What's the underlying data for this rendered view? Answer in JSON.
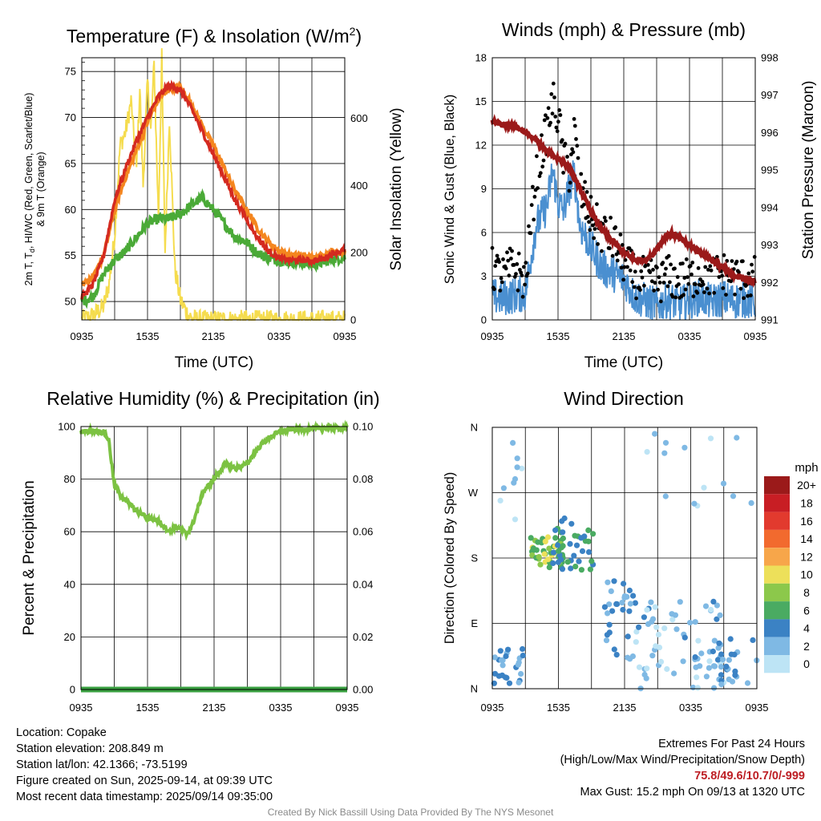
{
  "chart_data": [
    {
      "type": "line",
      "title": "Temperature (F) & Insolation (W/m²)",
      "xlabel": "Time (UTC)",
      "ylabel": "2m T, Td, HI/WC (Red, Green, Scarlet/Blue) & 9m T (Orange)",
      "ylabel2": "Solar Insolation (Yellow)",
      "x_ticks": [
        "0935",
        "1535",
        "2135",
        "0335",
        "0935"
      ],
      "ylim": [
        48,
        76.5
      ],
      "y_ticks": [
        "50",
        "55",
        "60",
        "65",
        "70",
        "75"
      ],
      "ylim2": [
        0,
        780
      ],
      "y2_ticks": [
        "0",
        "200",
        "400",
        "600"
      ],
      "colors": {
        "temp": "#d42a20",
        "temp9m": "#f4861f",
        "dewpoint": "#4aaa37",
        "insolation": "#f5dc4e"
      },
      "series": [
        {
          "name": "2m T",
          "hours": [
            0,
            1,
            2,
            3,
            4,
            5,
            6,
            7,
            8,
            9,
            10,
            11,
            12,
            13,
            14,
            15,
            16,
            17,
            18,
            19,
            20,
            21,
            22,
            23,
            24
          ],
          "values": [
            50.5,
            51.8,
            55,
            61,
            64.5,
            67.5,
            70,
            72.3,
            73.5,
            73,
            71,
            68.5,
            66,
            63.5,
            61,
            59,
            57,
            55.5,
            54.7,
            54.5,
            54.5,
            54.4,
            54.6,
            55.3,
            55.6
          ]
        },
        {
          "name": "9m T",
          "hours": [
            0,
            1,
            2,
            3,
            4,
            5,
            6,
            7,
            8,
            9,
            10,
            11,
            12,
            13,
            14,
            15,
            16,
            17,
            18,
            19,
            20,
            21,
            22,
            23,
            24
          ],
          "values": [
            52,
            52.5,
            55,
            60,
            63.5,
            66.5,
            69.5,
            72,
            73.2,
            73.3,
            71.5,
            69,
            67,
            64.5,
            62,
            60,
            58,
            56.5,
            55.5,
            55,
            55,
            54.8,
            55,
            55.5,
            55.3
          ]
        },
        {
          "name": "2m Td",
          "hours": [
            0,
            1,
            2,
            3,
            4,
            5,
            6,
            7,
            8,
            9,
            10,
            11,
            12,
            13,
            14,
            15,
            16,
            17,
            18,
            19,
            20,
            21,
            22,
            23,
            24
          ],
          "values": [
            50,
            50.5,
            53,
            54.5,
            55.5,
            57,
            58.5,
            59,
            59,
            59.5,
            60.5,
            61.3,
            60,
            58.5,
            57,
            56.5,
            55.3,
            54.7,
            54.5,
            54.3,
            54.2,
            54,
            54.3,
            54.6,
            54.8
          ]
        },
        {
          "name": "Insolation",
          "hours": [
            0,
            1,
            2,
            2.5,
            3,
            3.5,
            4,
            4.5,
            5,
            5.3,
            5.6,
            6,
            6.3,
            6.6,
            7,
            7.3,
            7.6,
            8,
            8.5,
            9,
            9.5,
            10,
            10.5,
            11,
            24
          ],
          "values": [
            0,
            12,
            40,
            110,
            250,
            520,
            560,
            650,
            450,
            690,
            400,
            710,
            560,
            760,
            300,
            780,
            200,
            600,
            150,
            60,
            25,
            5,
            0,
            0,
            0
          ]
        }
      ]
    },
    {
      "type": "line",
      "title": "Winds (mph) & Pressure (mb)",
      "xlabel": "Time (UTC)",
      "ylabel": "Sonic Wind & Gust (Blue, Black)",
      "ylabel2": "Station Pressure (Maroon)",
      "x_ticks": [
        "0935",
        "1535",
        "2135",
        "0335",
        "0935"
      ],
      "ylim": [
        0,
        18
      ],
      "y_ticks": [
        "0",
        "3",
        "6",
        "9",
        "12",
        "15",
        "18"
      ],
      "ylim2": [
        991,
        998
      ],
      "y2_ticks": [
        "991",
        "992",
        "993",
        "994",
        "995",
        "996",
        "997",
        "998"
      ],
      "colors": {
        "wind": "#4a8fd0",
        "gust": "#000000",
        "pressure": "#9b1a1a"
      },
      "series": [
        {
          "name": "Sonic Wind",
          "hours": [
            0,
            1,
            2,
            3,
            4,
            5,
            5.5,
            6,
            6.5,
            7,
            7.5,
            8,
            9,
            10,
            11,
            12,
            13,
            14,
            15,
            16,
            17,
            18,
            19,
            20,
            21,
            22,
            23,
            24
          ],
          "values": [
            1.6,
            1.5,
            1.7,
            1.8,
            6.5,
            7.8,
            10.3,
            8,
            7.5,
            9,
            10,
            6.5,
            5,
            3.6,
            3.2,
            2.8,
            1.6,
            1.3,
            1,
            1.4,
            1.1,
            1.3,
            1.6,
            1.2,
            1.5,
            1.3,
            1.4,
            1.2
          ]
        },
        {
          "name": "Gust",
          "hours": [
            0,
            1,
            2,
            3,
            4,
            5,
            5.5,
            6,
            6.5,
            7,
            7.5,
            8,
            9,
            10,
            11,
            12,
            13,
            14,
            15,
            16,
            17,
            18,
            19,
            20,
            21,
            22,
            23,
            24
          ],
          "values": [
            3.5,
            3,
            3.8,
            2.6,
            10,
            13,
            15,
            14,
            11,
            10,
            13,
            9,
            7,
            6,
            5.5,
            4,
            3,
            2.8,
            2.5,
            3,
            2.6,
            2.8,
            3.2,
            3,
            3.2,
            3,
            2.8,
            2.9
          ]
        },
        {
          "name": "Pressure",
          "hours": [
            0,
            1,
            2,
            3,
            4,
            5,
            6,
            7,
            8,
            9,
            10,
            11,
            12,
            13,
            14,
            14.5,
            15,
            15.5,
            16,
            16.5,
            17,
            18,
            19,
            20,
            21,
            22,
            23,
            24
          ],
          "values": [
            996.3,
            996.2,
            996.2,
            996.0,
            995.8,
            995.5,
            995.3,
            995.1,
            994.5,
            993.9,
            993.4,
            993.1,
            992.8,
            992.6,
            992.6,
            992.7,
            992.9,
            993.1,
            993.3,
            993.3,
            993.2,
            993.0,
            992.8,
            992.6,
            992.4,
            992.2,
            992.1,
            992.0
          ]
        }
      ]
    },
    {
      "type": "line",
      "title": "Relative Humidity (%) & Precipitation (in)",
      "xlabel": "",
      "ylabel": "Percent & Precipitation",
      "x_ticks": [
        "0935",
        "1535",
        "2135",
        "0335",
        "0935"
      ],
      "ylim": [
        0,
        100
      ],
      "y_ticks": [
        "0",
        "20",
        "40",
        "60",
        "80",
        "100"
      ],
      "ylim2": [
        0,
        0.1
      ],
      "y2_ticks": [
        "0.00",
        "0.02",
        "0.04",
        "0.06",
        "0.08",
        "0.10"
      ],
      "colors": {
        "rh": "#7cc242",
        "precip": "#3aa040"
      },
      "series": [
        {
          "name": "RH",
          "hours": [
            0,
            1,
            2,
            2.5,
            3,
            3.5,
            4,
            5,
            6,
            7,
            8,
            8.5,
            9,
            9.5,
            10,
            11,
            12,
            13,
            14,
            15,
            16,
            17,
            18,
            19,
            20,
            21,
            22,
            23,
            24
          ],
          "values": [
            98,
            98.5,
            98,
            95,
            78,
            74,
            72,
            68,
            65.5,
            64,
            60,
            62,
            61,
            59,
            62,
            75,
            80,
            86,
            84,
            86,
            92,
            96,
            98,
            99,
            99,
            99.3,
            99.5,
            99.5,
            99.5
          ]
        },
        {
          "name": "Precipitation",
          "hours": [
            0,
            24
          ],
          "values": [
            0,
            0
          ]
        }
      ]
    },
    {
      "type": "scatter",
      "title": "Wind Direction",
      "xlabel": "",
      "ylabel": "Direction (Colored By Speed)",
      "x_ticks": [
        "0935",
        "1535",
        "2135",
        "0335",
        "0935"
      ],
      "y_ticks": [
        "N",
        "E",
        "S",
        "W",
        "N"
      ],
      "ylim": [
        0,
        360
      ],
      "colorbar": {
        "title": "mph",
        "labels": [
          "20+",
          "18",
          "16",
          "14",
          "12",
          "10",
          "8",
          "6",
          "4",
          "2",
          "0"
        ],
        "colors": [
          "#9b1a1a",
          "#c81e24",
          "#e23a2e",
          "#f26a2e",
          "#f7a64a",
          "#ede05a",
          "#8cc84b",
          "#4aab62",
          "#3b82c4",
          "#7fb9e4",
          "#bde4f5"
        ]
      },
      "clusters": [
        {
          "hour_range": [
            0,
            3
          ],
          "dir_range": [
            5,
            55
          ],
          "speed": [
            1,
            5
          ],
          "count": 25
        },
        {
          "hour_range": [
            0.3,
            3
          ],
          "dir_range": [
            230,
            355
          ],
          "speed": [
            0,
            2
          ],
          "count": 9
        },
        {
          "hour_range": [
            3.5,
            6.5
          ],
          "dir_range": [
            165,
            210
          ],
          "speed": [
            5,
            10
          ],
          "count": 45
        },
        {
          "hour_range": [
            5.5,
            9.5
          ],
          "dir_range": [
            160,
            235
          ],
          "speed": [
            3,
            7
          ],
          "count": 38
        },
        {
          "hour_range": [
            10,
            13
          ],
          "dir_range": [
            40,
            150
          ],
          "speed": [
            1,
            5
          ],
          "count": 30
        },
        {
          "hour_range": [
            13,
            21
          ],
          "dir_range": [
            0,
            120
          ],
          "speed": [
            0,
            4
          ],
          "count": 70
        },
        {
          "hour_range": [
            14,
            24
          ],
          "dir_range": [
            250,
            360
          ],
          "speed": [
            0,
            2
          ],
          "count": 14
        },
        {
          "hour_range": [
            20,
            24
          ],
          "dir_range": [
            5,
            70
          ],
          "speed": [
            1,
            5
          ],
          "count": 25
        }
      ]
    }
  ],
  "info": {
    "location": "Location: Copake",
    "elevation": "Station elevation: 208.849 m",
    "latlon": "Station lat/lon: 42.1366; -73.5199",
    "created": "Figure created on Sun, 2025-09-14, at 09:39 UTC",
    "recent": "Most recent data timestamp: 2025/09/14 09:35:00"
  },
  "extremes": {
    "title": "Extremes For Past 24 Hours",
    "subtitle": "(High/Low/Max Wind/Precipitation/Snow Depth)",
    "values": "75.8/49.6/10.7/0/-999",
    "gust": "Max Gust: 15.2 mph On 09/13 at 1320 UTC"
  },
  "credit": "Created By Nick Bassill Using Data Provided By The NYS Mesonet"
}
